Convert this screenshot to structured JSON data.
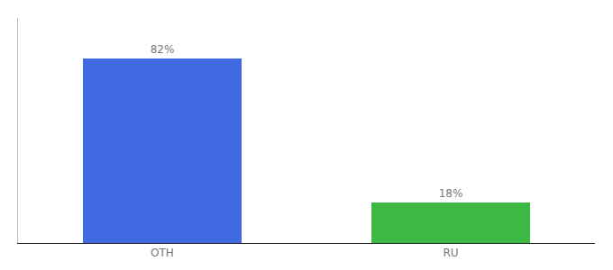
{
  "chart_data": {
    "type": "bar",
    "categories": [
      "OTH",
      "RU"
    ],
    "values": [
      82,
      18
    ],
    "value_labels": [
      "82%",
      "18%"
    ],
    "colors": [
      "#4169e1",
      "#3cb843"
    ],
    "ylim": [
      0,
      100
    ],
    "grid": false,
    "data_labels": true,
    "tick_labels": "x"
  }
}
